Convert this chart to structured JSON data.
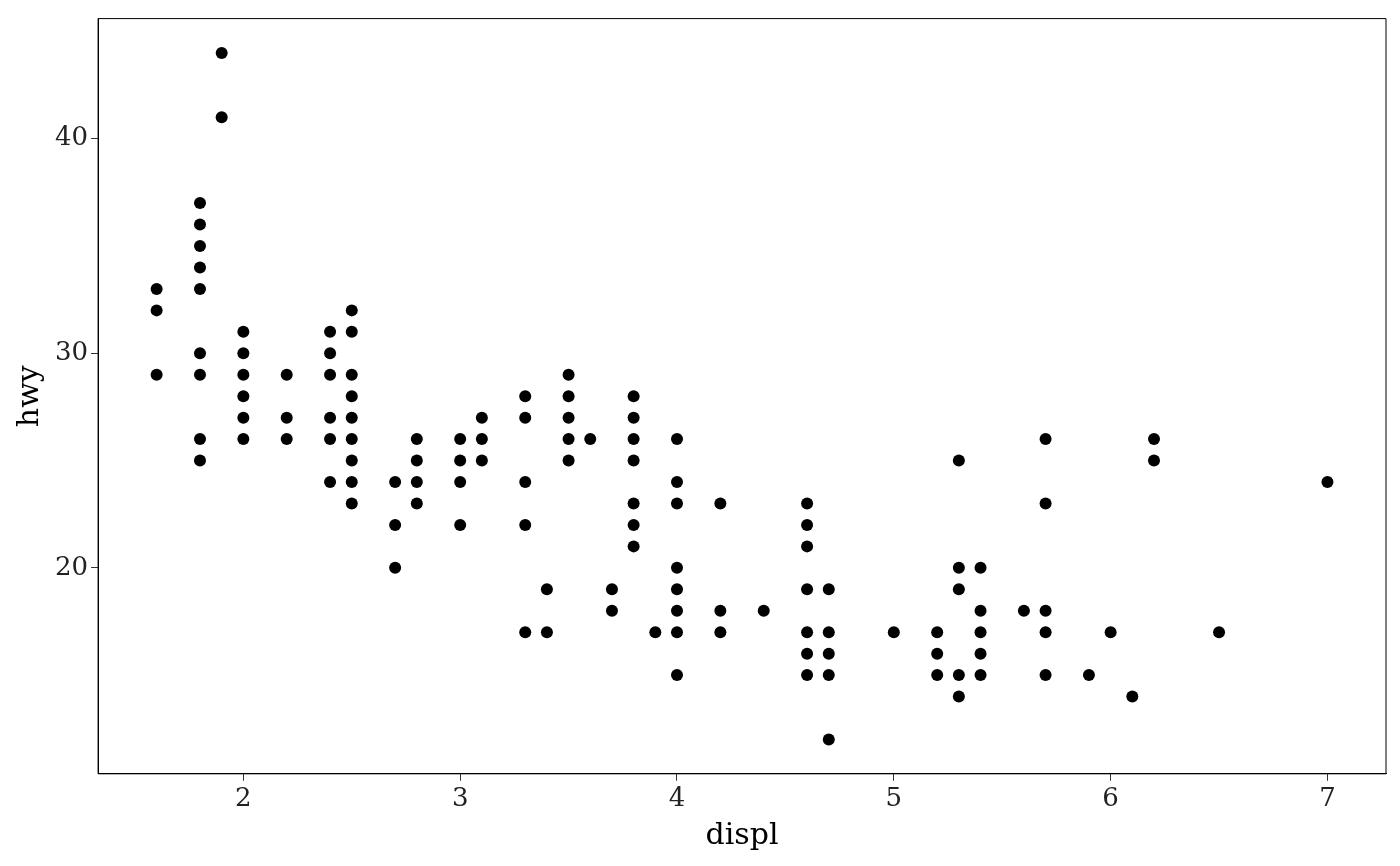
{
  "chart_data": {
    "type": "scatter",
    "xlabel": "displ",
    "ylabel": "hwy",
    "x": [
      1.6,
      1.6,
      1.6,
      1.8,
      1.8,
      1.8,
      1.8,
      1.8,
      1.8,
      1.8,
      1.8,
      1.8,
      1.9,
      1.9,
      2.0,
      2.0,
      2.0,
      2.0,
      2.0,
      2.0,
      2.2,
      2.2,
      2.2,
      2.4,
      2.4,
      2.4,
      2.4,
      2.4,
      2.4,
      2.5,
      2.5,
      2.5,
      2.5,
      2.5,
      2.5,
      2.5,
      2.5,
      2.5,
      2.7,
      2.7,
      2.7,
      2.8,
      2.8,
      2.8,
      2.8,
      3.0,
      3.0,
      3.0,
      3.0,
      3.1,
      3.1,
      3.1,
      3.3,
      3.3,
      3.3,
      3.3,
      3.3,
      3.4,
      3.4,
      3.5,
      3.5,
      3.5,
      3.5,
      3.5,
      3.6,
      3.7,
      3.7,
      3.8,
      3.8,
      3.8,
      3.8,
      3.8,
      3.8,
      3.8,
      3.9,
      4.0,
      4.0,
      4.0,
      4.0,
      4.0,
      4.0,
      4.0,
      4.0,
      4.2,
      4.2,
      4.2,
      4.4,
      4.6,
      4.6,
      4.6,
      4.6,
      4.6,
      4.6,
      4.6,
      4.7,
      4.7,
      4.7,
      4.7,
      4.7,
      5.0,
      5.2,
      5.2,
      5.2,
      5.3,
      5.3,
      5.3,
      5.3,
      5.3,
      5.4,
      5.4,
      5.4,
      5.4,
      5.4,
      5.6,
      5.7,
      5.7,
      5.7,
      5.7,
      5.7,
      5.9,
      6.0,
      6.1,
      6.2,
      6.2,
      6.5,
      7.0
    ],
    "values": [
      33,
      32,
      29,
      37,
      36,
      35,
      34,
      33,
      30,
      29,
      26,
      25,
      44,
      41,
      31,
      30,
      29,
      28,
      27,
      26,
      29,
      27,
      26,
      31,
      30,
      29,
      27,
      26,
      24,
      32,
      31,
      29,
      28,
      27,
      26,
      25,
      24,
      23,
      24,
      22,
      20,
      26,
      25,
      24,
      23,
      26,
      25,
      24,
      22,
      27,
      26,
      25,
      28,
      27,
      24,
      22,
      17,
      19,
      17,
      29,
      28,
      27,
      26,
      25,
      26,
      19,
      18,
      28,
      27,
      26,
      25,
      23,
      22,
      21,
      17,
      26,
      24,
      23,
      20,
      19,
      18,
      17,
      15,
      23,
      18,
      17,
      18,
      23,
      22,
      21,
      19,
      17,
      16,
      15,
      19,
      17,
      16,
      15,
      12,
      17,
      17,
      16,
      15,
      25,
      20,
      19,
      15,
      14,
      20,
      18,
      17,
      16,
      15,
      18,
      26,
      23,
      18,
      17,
      15,
      15,
      17,
      14,
      26,
      25,
      17,
      24
    ],
    "color": "#000000",
    "marker": "circle",
    "xlim": [
      1.33,
      7.27
    ],
    "xticks": [
      2,
      3,
      4,
      5,
      6,
      7
    ],
    "ylim": [
      10.4,
      45.6
    ],
    "yticks": [
      20,
      30,
      40
    ],
    "grid": false,
    "legend": false
  }
}
